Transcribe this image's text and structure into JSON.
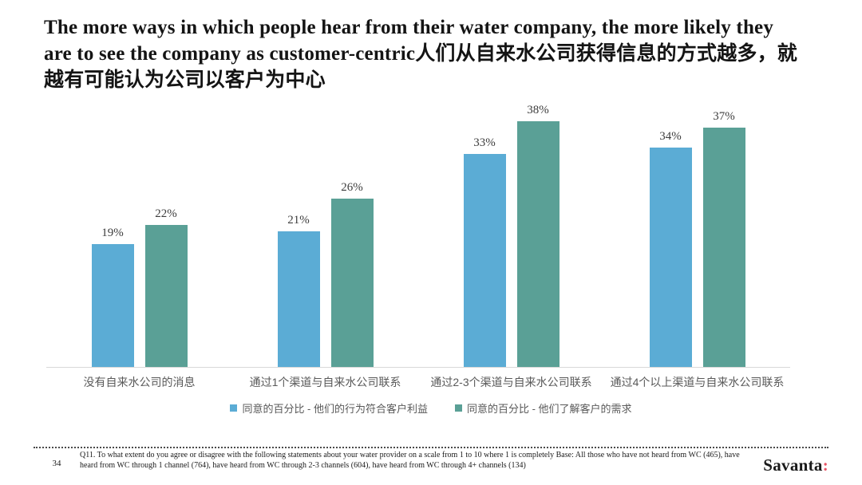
{
  "title": "The more ways in which people hear from their water company, the more likely they are to see the company as customer-centric人们从自来水公司获得信息的方式越多，就越有可能认为公司以客户为中心",
  "chart_data": {
    "type": "bar",
    "categories": [
      "没有自来水公司的消息",
      "通过1个渠道与自来水公司联系",
      "通过2-3个渠道与自来水公司联系",
      "通过4个以上渠道与自来水公司联系"
    ],
    "series": [
      {
        "name": "同意的百分比 - 他们的行为符合客户利益",
        "color": "#5BACD5",
        "values": [
          19,
          21,
          33,
          34
        ]
      },
      {
        "name": "同意的百分比 - 他们了解客户的需求",
        "color": "#5AA096",
        "values": [
          22,
          26,
          38,
          37
        ]
      }
    ],
    "value_suffix": "%",
    "ylim": [
      0,
      40
    ],
    "grid": false,
    "data_labels": true,
    "legend_position": "bottom"
  },
  "footer": {
    "page_number": "34",
    "footnote": "Q11. To what extent do you agree or disagree with the following statements about your water provider on a scale from 1 to 10 where 1 is completely Base: All those who have not heard from WC (465), have heard from WC through 1 channel (764), have heard from WC through 2-3 channels (604), have heard from WC through 4+ channels (134)",
    "logo_text": "Savanta",
    "logo_colon": ":",
    "logo_colon_color": "#E85566"
  },
  "colors": {
    "axis_line": "#D9D9D9",
    "category_label": "#595959",
    "data_label": "#3D3D3D",
    "title": "#141414"
  }
}
